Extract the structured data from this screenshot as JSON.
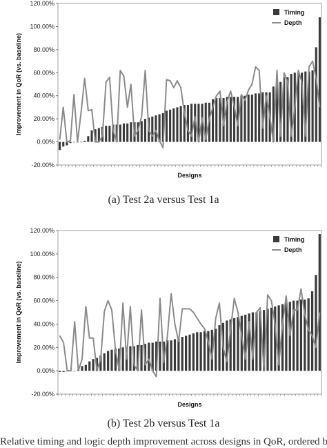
{
  "chart_data": [
    {
      "type": "bar",
      "caption": "(a) Test 2a versus Test 1a",
      "xlabel": "Designs",
      "ylabel": "Improvement in QoR (vs. baseline)",
      "ylim": [
        -20,
        120
      ],
      "yticks": [
        -20,
        0,
        20,
        40,
        60,
        80,
        100,
        120
      ],
      "ytick_labels": [
        "-20.00%",
        "0.00%",
        "20.00%",
        "40.00%",
        "60.00%",
        "80.00%",
        "100.00%",
        "120.00%"
      ],
      "legend_position": "top-right",
      "series": [
        {
          "name": "Timing",
          "kind": "bar",
          "color": "#3a3a3a",
          "values": [
            -7,
            -4,
            -3,
            -1,
            0,
            0,
            0,
            1,
            5,
            10,
            11,
            12,
            13,
            14,
            14,
            15,
            15,
            15,
            16,
            16,
            17,
            17,
            17,
            18,
            20,
            21,
            22,
            23,
            24,
            25,
            27,
            28,
            29,
            30,
            31,
            32,
            32,
            33,
            33,
            33,
            33,
            34,
            34,
            37,
            38,
            38,
            38,
            39,
            39,
            39,
            39,
            40,
            40,
            41,
            41,
            42,
            42,
            43,
            43,
            43,
            48,
            50,
            52,
            56,
            56,
            59,
            60,
            60,
            60,
            61,
            61,
            62,
            82,
            108
          ]
        },
        {
          "name": "Depth",
          "kind": "line",
          "color": "#8a8a8a",
          "values": [
            2,
            30,
            0,
            1,
            41,
            0,
            26,
            55,
            27,
            28,
            0,
            0,
            5,
            52,
            56,
            10,
            0,
            62,
            57,
            30,
            50,
            5,
            10,
            22,
            62,
            10,
            5,
            10,
            1,
            -5,
            54,
            53,
            47,
            53,
            47,
            25,
            10,
            5,
            22,
            0,
            21,
            2,
            20,
            30,
            40,
            44,
            14,
            35,
            44,
            31,
            14,
            41,
            36,
            45,
            50,
            65,
            62,
            12,
            40,
            22,
            0,
            62,
            5,
            60,
            52,
            5,
            30,
            62,
            52,
            5,
            65,
            70,
            55,
            30
          ]
        }
      ]
    },
    {
      "type": "bar",
      "caption": "(b) Test 2b versus Test 1a",
      "xlabel": "Designs",
      "ylabel": "Improvement in QoR (vs. baseline)",
      "ylim": [
        -20,
        120
      ],
      "yticks": [
        -20,
        0,
        20,
        40,
        60,
        80,
        100,
        120
      ],
      "ytick_labels": [
        "-20.00%",
        "0.00%",
        "20.00%",
        "40.00%",
        "60.00%",
        "80.00%",
        "100.00%",
        "120.00%"
      ],
      "legend_position": "top-right",
      "series": [
        {
          "name": "Timing",
          "kind": "bar",
          "color": "#3a3a3a",
          "values": [
            -1,
            -1,
            0,
            0,
            0,
            1,
            4,
            5,
            8,
            10,
            11,
            13,
            15,
            17,
            18,
            19,
            19,
            20,
            20,
            21,
            21,
            22,
            22,
            23,
            24,
            24,
            25,
            25,
            25,
            26,
            26,
            27,
            28,
            29,
            30,
            31,
            32,
            33,
            33,
            34,
            34,
            35,
            36,
            39,
            41,
            43,
            44,
            45,
            46,
            47,
            48,
            49,
            50,
            50,
            51,
            52,
            53,
            54,
            55,
            56,
            57,
            58,
            59,
            60,
            60,
            61,
            61,
            62,
            68,
            82,
            117
          ]
        },
        {
          "name": "Depth",
          "kind": "line",
          "color": "#8a8a8a",
          "values": [
            30,
            24,
            0,
            0,
            42,
            0,
            10,
            55,
            28,
            28,
            0,
            10,
            51,
            60,
            52,
            18,
            0,
            58,
            10,
            55,
            5,
            0,
            52,
            5,
            10,
            0,
            -5,
            62,
            7,
            30,
            66,
            40,
            25,
            53,
            53,
            53,
            50,
            45,
            40,
            36,
            25,
            10,
            45,
            58,
            20,
            8,
            35,
            62,
            50,
            30,
            10,
            42,
            10,
            50,
            54,
            0,
            65,
            60,
            40,
            5,
            40,
            64,
            30,
            52,
            52,
            70,
            48,
            35,
            30,
            20,
            50
          ]
        }
      ]
    }
  ],
  "bottom_text": "Relative timing and logic depth improvement across designs in QoR, ordered by timing improvement, with depth shown alongside"
}
